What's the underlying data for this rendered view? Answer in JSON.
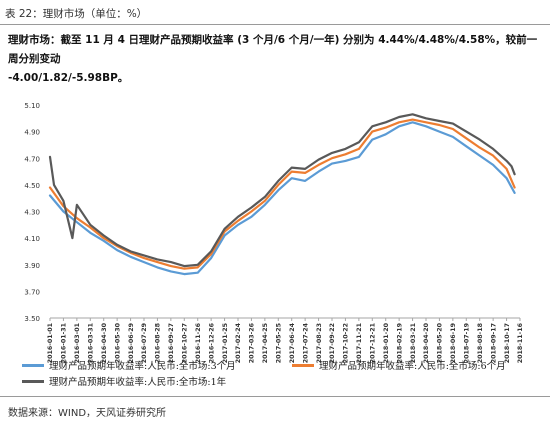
{
  "caption": "表 22：理财市场（单位：%）",
  "summary": {
    "line1": "理财市场：截至 11 月 4 日理财产品预期收益率 (3 个月/6 个月/一年) 分别为 4.44%/4.48%/4.58%，较前一周分别变动",
    "line2": "-4.00/1.82/-5.98BP。"
  },
  "source": "数据来源：WIND，天风证券研究所",
  "chart_data": {
    "type": "line",
    "ylim": [
      3.5,
      5.1
    ],
    "yticks": [
      "5.10",
      "4.90",
      "4.70",
      "4.50",
      "4.30",
      "4.10",
      "3.90",
      "3.70",
      "3.50"
    ],
    "x_tick_labels": [
      "2016-01-01",
      "2016-01-31",
      "2016-03-01",
      "2016-03-31",
      "2016-04-30",
      "2016-05-30",
      "2016-06-29",
      "2016-07-29",
      "2016-08-28",
      "2016-09-27",
      "2016-10-27",
      "2016-11-26",
      "2016-12-26",
      "2017-01-25",
      "2017-02-24",
      "2017-03-26",
      "2017-04-25",
      "2017-05-25",
      "2017-06-24",
      "2017-07-24",
      "2017-08-23",
      "2017-09-22",
      "2017-10-22",
      "2017-11-21",
      "2017-12-21",
      "2018-01-20",
      "2018-02-19",
      "2018-03-21",
      "2018-04-20",
      "2018-05-20",
      "2018-06-19",
      "2018-07-19",
      "2018-08-18",
      "2018-09-17",
      "2018-10-17",
      "2018-11-16"
    ],
    "x_axis_start": "2016-01-01",
    "x_axis_end": "2018-11-16",
    "series": [
      {
        "name": "理财产品预期年收益率:人民币:全市场:3个月",
        "color": "#5B9BD5",
        "points": [
          [
            "2016-01-01",
            4.42
          ],
          [
            "2016-01-31",
            4.3
          ],
          [
            "2016-03-01",
            4.22
          ],
          [
            "2016-03-31",
            4.14
          ],
          [
            "2016-04-30",
            4.08
          ],
          [
            "2016-05-30",
            4.01
          ],
          [
            "2016-06-29",
            3.96
          ],
          [
            "2016-07-29",
            3.92
          ],
          [
            "2016-08-28",
            3.88
          ],
          [
            "2016-09-27",
            3.85
          ],
          [
            "2016-10-27",
            3.83
          ],
          [
            "2016-11-26",
            3.84
          ],
          [
            "2016-12-26",
            3.95
          ],
          [
            "2017-01-25",
            4.12
          ],
          [
            "2017-02-24",
            4.2
          ],
          [
            "2017-03-26",
            4.26
          ],
          [
            "2017-04-25",
            4.35
          ],
          [
            "2017-05-25",
            4.46
          ],
          [
            "2017-06-24",
            4.55
          ],
          [
            "2017-07-24",
            4.53
          ],
          [
            "2017-08-23",
            4.6
          ],
          [
            "2017-09-22",
            4.66
          ],
          [
            "2017-10-22",
            4.68
          ],
          [
            "2017-11-21",
            4.71
          ],
          [
            "2017-12-21",
            4.84
          ],
          [
            "2018-01-20",
            4.88
          ],
          [
            "2018-02-19",
            4.94
          ],
          [
            "2018-03-21",
            4.97
          ],
          [
            "2018-04-20",
            4.94
          ],
          [
            "2018-05-20",
            4.9
          ],
          [
            "2018-06-19",
            4.86
          ],
          [
            "2018-07-19",
            4.79
          ],
          [
            "2018-08-18",
            4.72
          ],
          [
            "2018-09-17",
            4.65
          ],
          [
            "2018-10-17",
            4.55
          ],
          [
            "2018-11-04",
            4.44
          ]
        ]
      },
      {
        "name": "理财产品预期年收益率:人民币:全市场:6个月",
        "color": "#ED7D31",
        "points": [
          [
            "2016-01-01",
            4.48
          ],
          [
            "2016-01-31",
            4.34
          ],
          [
            "2016-03-01",
            4.25
          ],
          [
            "2016-03-31",
            4.18
          ],
          [
            "2016-04-30",
            4.1
          ],
          [
            "2016-05-30",
            4.04
          ],
          [
            "2016-06-29",
            3.99
          ],
          [
            "2016-07-29",
            3.95
          ],
          [
            "2016-08-28",
            3.92
          ],
          [
            "2016-09-27",
            3.89
          ],
          [
            "2016-10-27",
            3.87
          ],
          [
            "2016-11-26",
            3.88
          ],
          [
            "2016-12-26",
            3.98
          ],
          [
            "2017-01-25",
            4.15
          ],
          [
            "2017-02-24",
            4.23
          ],
          [
            "2017-03-26",
            4.3
          ],
          [
            "2017-04-25",
            4.38
          ],
          [
            "2017-05-25",
            4.5
          ],
          [
            "2017-06-24",
            4.6
          ],
          [
            "2017-07-24",
            4.59
          ],
          [
            "2017-08-23",
            4.65
          ],
          [
            "2017-09-22",
            4.7
          ],
          [
            "2017-10-22",
            4.73
          ],
          [
            "2017-11-21",
            4.77
          ],
          [
            "2017-12-21",
            4.9
          ],
          [
            "2018-01-20",
            4.93
          ],
          [
            "2018-02-19",
            4.97
          ],
          [
            "2018-03-21",
            4.99
          ],
          [
            "2018-04-20",
            4.97
          ],
          [
            "2018-05-20",
            4.95
          ],
          [
            "2018-06-19",
            4.92
          ],
          [
            "2018-07-19",
            4.85
          ],
          [
            "2018-08-18",
            4.78
          ],
          [
            "2018-09-17",
            4.72
          ],
          [
            "2018-10-17",
            4.62
          ],
          [
            "2018-11-04",
            4.48
          ]
        ]
      },
      {
        "name": "理财产品预期年收益率:人民币:全市场:1年",
        "color": "#595959",
        "points": [
          [
            "2016-01-01",
            4.71
          ],
          [
            "2016-01-10",
            4.5
          ],
          [
            "2016-01-31",
            4.38
          ],
          [
            "2016-02-20",
            4.1
          ],
          [
            "2016-03-01",
            4.35
          ],
          [
            "2016-03-31",
            4.2
          ],
          [
            "2016-04-30",
            4.12
          ],
          [
            "2016-05-30",
            4.05
          ],
          [
            "2016-06-29",
            4.0
          ],
          [
            "2016-07-29",
            3.97
          ],
          [
            "2016-08-28",
            3.94
          ],
          [
            "2016-09-27",
            3.92
          ],
          [
            "2016-10-27",
            3.89
          ],
          [
            "2016-11-26",
            3.9
          ],
          [
            "2016-12-26",
            4.0
          ],
          [
            "2017-01-25",
            4.17
          ],
          [
            "2017-02-24",
            4.26
          ],
          [
            "2017-03-26",
            4.33
          ],
          [
            "2017-04-25",
            4.41
          ],
          [
            "2017-05-25",
            4.53
          ],
          [
            "2017-06-24",
            4.63
          ],
          [
            "2017-07-24",
            4.62
          ],
          [
            "2017-08-23",
            4.69
          ],
          [
            "2017-09-22",
            4.74
          ],
          [
            "2017-10-22",
            4.77
          ],
          [
            "2017-11-21",
            4.82
          ],
          [
            "2017-12-21",
            4.94
          ],
          [
            "2018-01-20",
            4.97
          ],
          [
            "2018-02-19",
            5.01
          ],
          [
            "2018-03-21",
            5.03
          ],
          [
            "2018-04-20",
            5.0
          ],
          [
            "2018-05-20",
            4.98
          ],
          [
            "2018-06-19",
            4.96
          ],
          [
            "2018-07-19",
            4.9
          ],
          [
            "2018-08-18",
            4.84
          ],
          [
            "2018-09-17",
            4.77
          ],
          [
            "2018-10-17",
            4.68
          ],
          [
            "2018-10-28",
            4.64
          ],
          [
            "2018-11-04",
            4.58
          ]
        ]
      }
    ]
  }
}
